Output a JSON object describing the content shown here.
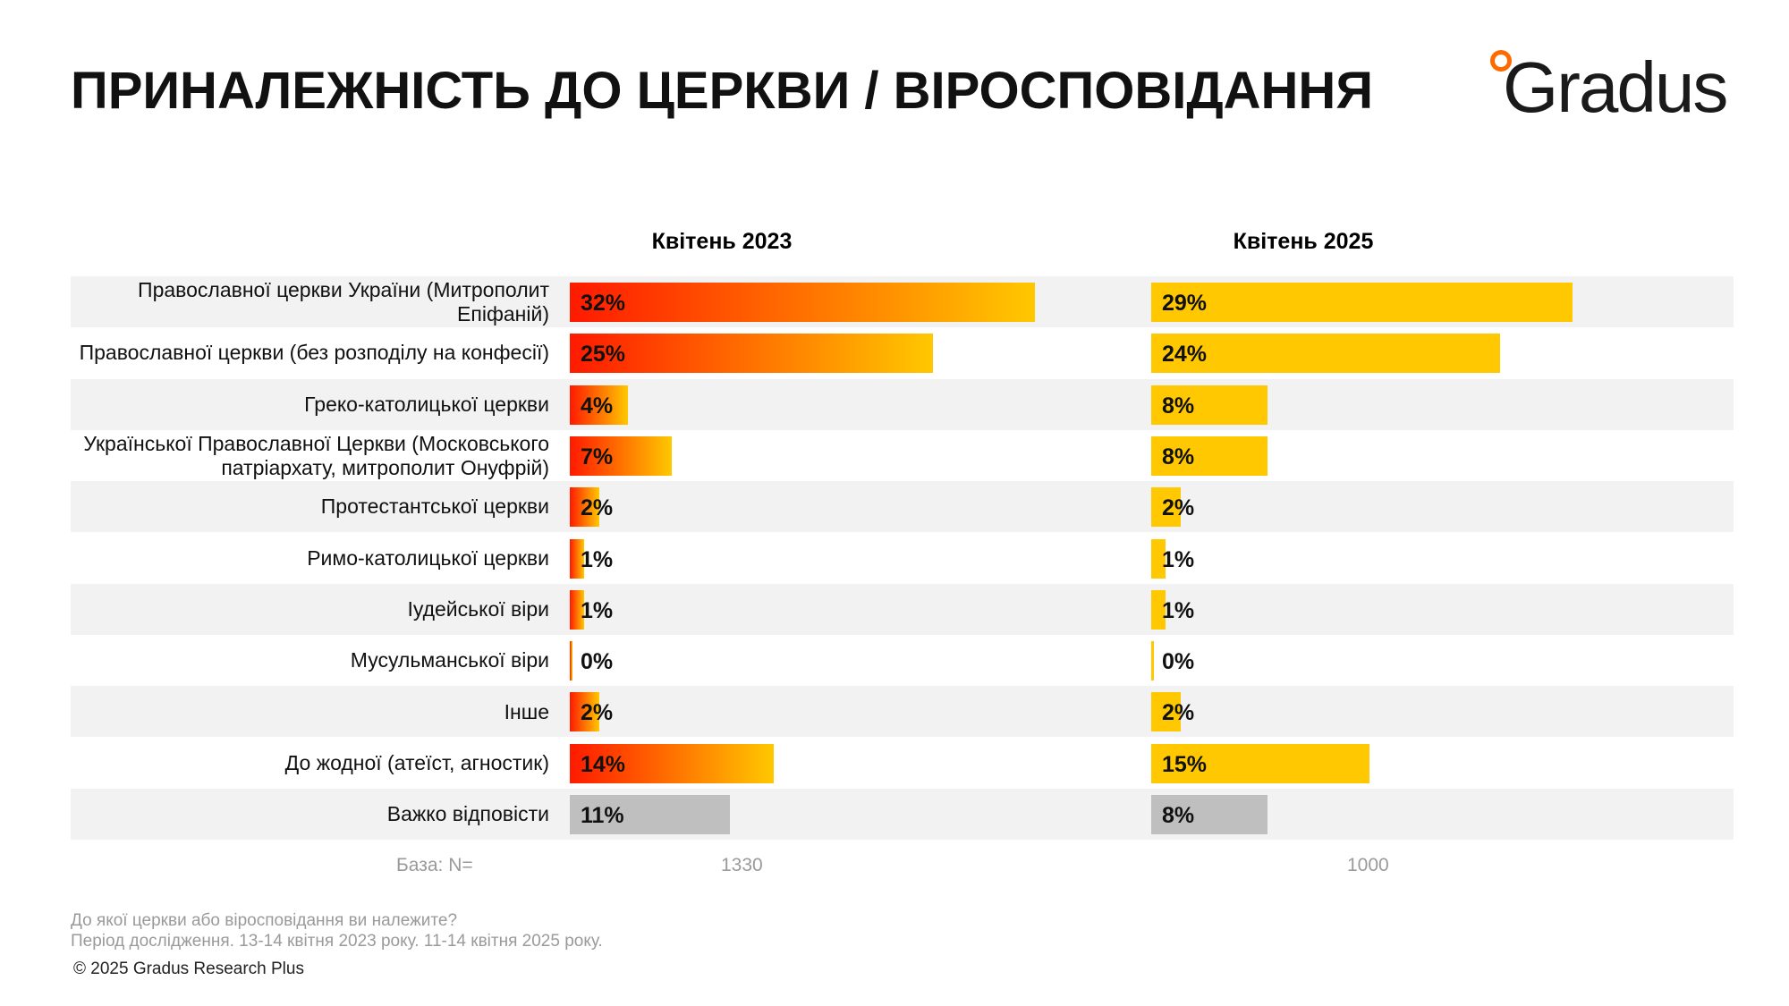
{
  "chart_data": {
    "type": "bar",
    "title": "ПРИНАЛЕЖНІСТЬ ДО ЦЕРКВИ / ВІРОСПОВІДАННЯ",
    "logo": "Gradus",
    "categories": [
      "Православної церкви України (Митрополит Епіфаній)",
      "Православної церкви (без розподілу на конфесії)",
      "Греко-католицької церкви",
      "Української Православної Церкви (Московського патріархату, митрополит Онуфрій)",
      "Протестантської церкви",
      "Римо-католицької церкви",
      "Іудейської віри",
      "Мусульманської віри",
      "Інше",
      "До жодної (атеїст, агностик)",
      "Важко відповісти"
    ],
    "series": [
      {
        "name": "Квітень 2023",
        "gradient_start": "#ff1a00",
        "colors": [
          "#ffc800",
          "#ffc800",
          "#ffc800",
          "#ffc800",
          "#ffc800",
          "#ffc800",
          "#ffc800",
          "#ffc800",
          "#ffc800",
          "#ffc800",
          "#bfbfbf"
        ],
        "values": [
          32,
          25,
          4,
          7,
          2,
          1,
          1,
          0,
          2,
          14,
          11
        ],
        "value_labels": [
          "32%",
          "25%",
          "4%",
          "7%",
          "2%",
          "1%",
          "1%",
          "0%",
          "2%",
          "14%",
          "11%"
        ],
        "base": 1330
      },
      {
        "name": "Квітень 2025",
        "colors": [
          "#ffc800",
          "#ffc800",
          "#ffc800",
          "#ffc800",
          "#ffc800",
          "#ffc800",
          "#ffc800",
          "#ffc800",
          "#ffc800",
          "#ffc800",
          "#bfbfbf"
        ],
        "values": [
          29,
          24,
          8,
          8,
          2,
          1,
          1,
          0,
          2,
          15,
          8
        ],
        "value_labels": [
          "29%",
          "24%",
          "8%",
          "8%",
          "2%",
          "1%",
          "1%",
          "0%",
          "2%",
          "15%",
          "8%"
        ],
        "base": 1000
      }
    ],
    "xlim": [
      0,
      40
    ],
    "base_label": "База: N=",
    "notes": [
      "До якої церкви або віросповідання ви належите?",
      "Період дослідження. 13-14 квітня 2023 року. 11-14 квітня 2025 року."
    ],
    "copyright": "© 2025 Gradus Research Plus"
  }
}
